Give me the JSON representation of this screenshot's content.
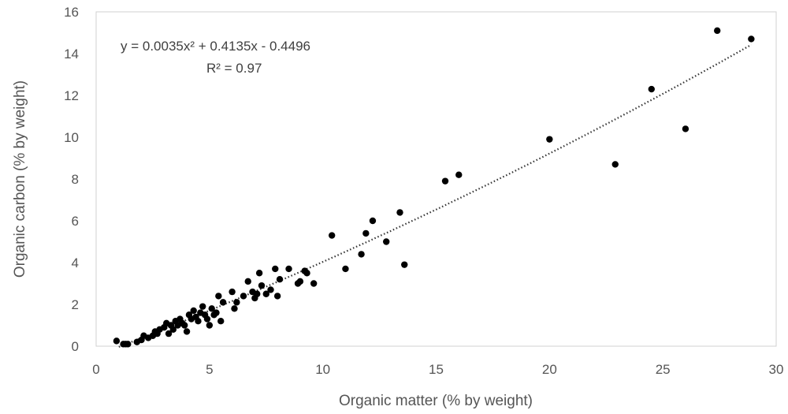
{
  "chart_data": {
    "type": "scatter",
    "title": "",
    "xlabel": "Organic matter (% by weight)",
    "ylabel": "Organic carbon (% by weight)",
    "xlim": [
      0,
      30
    ],
    "ylim": [
      0,
      16
    ],
    "xticks": [
      0,
      5,
      10,
      15,
      20,
      25,
      30
    ],
    "yticks": [
      0,
      2,
      4,
      6,
      8,
      10,
      12,
      14,
      16
    ],
    "grid": false,
    "legend": "none",
    "marker_color": "#000000",
    "trendline": {
      "type": "polynomial",
      "a": 0.0035,
      "b": 0.4135,
      "c": -0.4496,
      "x_range": [
        1,
        28.9
      ],
      "style": "dotted",
      "equation_label": "y = 0.0035x² + 0.4135x - 0.4496",
      "r2_label": "R² = 0.97"
    },
    "series": [
      {
        "points": [
          [
            0.9,
            0.25
          ],
          [
            1.2,
            0.1
          ],
          [
            1.3,
            0.1
          ],
          [
            1.4,
            0.1
          ],
          [
            1.8,
            0.2
          ],
          [
            2.0,
            0.3
          ],
          [
            2.1,
            0.5
          ],
          [
            2.3,
            0.4
          ],
          [
            2.5,
            0.5
          ],
          [
            2.6,
            0.7
          ],
          [
            2.7,
            0.6
          ],
          [
            2.8,
            0.8
          ],
          [
            3.0,
            0.9
          ],
          [
            3.1,
            1.1
          ],
          [
            3.2,
            0.6
          ],
          [
            3.3,
            1.0
          ],
          [
            3.4,
            0.8
          ],
          [
            3.5,
            1.2
          ],
          [
            3.6,
            1.0
          ],
          [
            3.7,
            1.3
          ],
          [
            3.8,
            1.1
          ],
          [
            3.9,
            1.0
          ],
          [
            4.0,
            0.7
          ],
          [
            4.1,
            1.5
          ],
          [
            4.2,
            1.3
          ],
          [
            4.3,
            1.7
          ],
          [
            4.4,
            1.4
          ],
          [
            4.5,
            1.2
          ],
          [
            4.6,
            1.6
          ],
          [
            4.7,
            1.9
          ],
          [
            4.8,
            1.5
          ],
          [
            4.9,
            1.3
          ],
          [
            5.0,
            1.0
          ],
          [
            5.1,
            1.8
          ],
          [
            5.2,
            1.5
          ],
          [
            5.3,
            1.6
          ],
          [
            5.4,
            2.4
          ],
          [
            5.5,
            1.2
          ],
          [
            5.6,
            2.1
          ],
          [
            6.0,
            2.6
          ],
          [
            6.1,
            1.8
          ],
          [
            6.2,
            2.1
          ],
          [
            6.5,
            2.4
          ],
          [
            6.7,
            3.1
          ],
          [
            6.9,
            2.6
          ],
          [
            7.0,
            2.3
          ],
          [
            7.1,
            2.5
          ],
          [
            7.2,
            3.5
          ],
          [
            7.3,
            2.9
          ],
          [
            7.5,
            2.5
          ],
          [
            7.7,
            2.7
          ],
          [
            7.9,
            3.7
          ],
          [
            8.0,
            2.4
          ],
          [
            8.1,
            3.2
          ],
          [
            8.5,
            3.7
          ],
          [
            8.9,
            3.0
          ],
          [
            9.0,
            3.1
          ],
          [
            9.2,
            3.6
          ],
          [
            9.3,
            3.5
          ],
          [
            9.6,
            3.0
          ],
          [
            10.4,
            5.3
          ],
          [
            11.0,
            3.7
          ],
          [
            11.7,
            4.4
          ],
          [
            11.9,
            5.4
          ],
          [
            12.2,
            6.0
          ],
          [
            12.8,
            5.0
          ],
          [
            13.4,
            6.4
          ],
          [
            13.6,
            3.9
          ],
          [
            15.4,
            7.9
          ],
          [
            16.0,
            8.2
          ],
          [
            20.0,
            9.9
          ],
          [
            22.9,
            8.7
          ],
          [
            24.5,
            12.3
          ],
          [
            26.0,
            10.4
          ],
          [
            27.4,
            15.1
          ],
          [
            28.9,
            14.7
          ]
        ]
      }
    ]
  }
}
